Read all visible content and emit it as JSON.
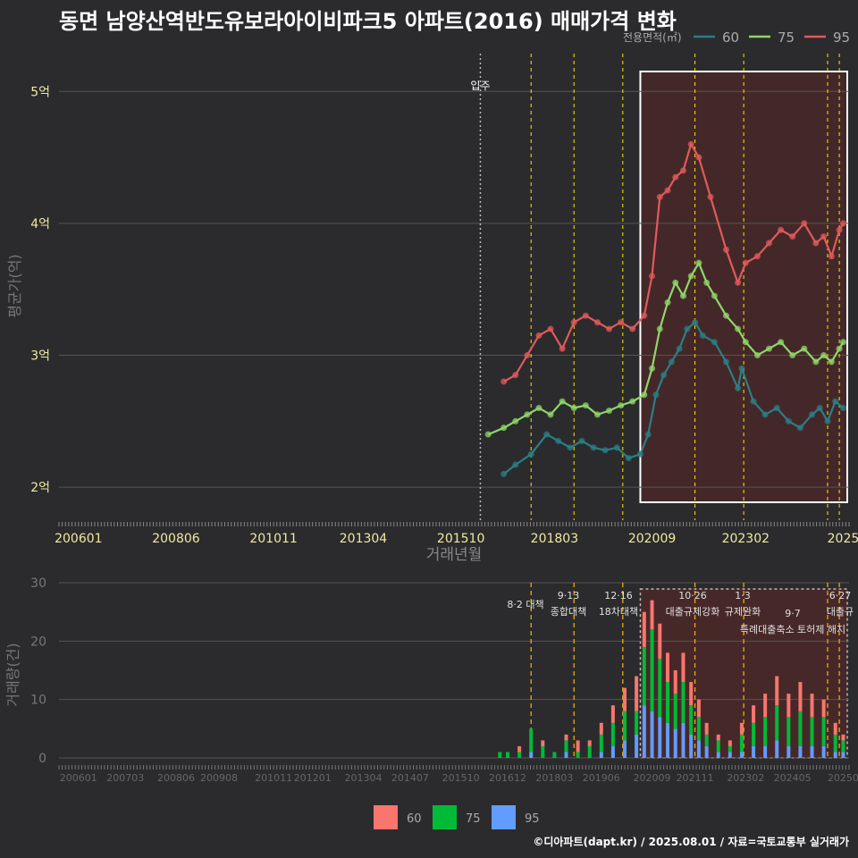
{
  "title": "동면 남양산역반도유보라아이비파크5 아파트(2016) 매매가격 변화",
  "footer": "©디아파트(dapt.kr) / 2025.08.01 / 자료=국토교통부 실거래가",
  "colors": {
    "bg": "#2b2b2d",
    "grid": "#555555",
    "s60": "#2a7f86",
    "s75": "#8fd66a",
    "s95": "#e05a5a",
    "b60": "#f8766d",
    "b75": "#00ba38",
    "b95": "#619cff",
    "policy": "#ffe600",
    "band": "#5a2626"
  },
  "chart_data": [
    {
      "type": "line",
      "ylabel": "평균가(억)",
      "xlabel": "거래년월",
      "ylim": [
        1.75,
        5.3
      ],
      "y_ticks": [
        "2억",
        "3억",
        "4억",
        "5억"
      ],
      "x_ticks": [
        "200601",
        "200806",
        "201011",
        "201304",
        "201510",
        "201803",
        "202009",
        "202302",
        "2025"
      ],
      "legend_title": "전용면적(㎡)",
      "annotation_move_in": "입주",
      "series": [
        {
          "name": "60",
          "points": [
            [
              2016.9,
              2.1
            ],
            [
              2017.2,
              2.17
            ],
            [
              2017.6,
              2.25
            ],
            [
              2018.0,
              2.4
            ],
            [
              2018.3,
              2.35
            ],
            [
              2018.6,
              2.3
            ],
            [
              2018.9,
              2.35
            ],
            [
              2019.2,
              2.3
            ],
            [
              2019.5,
              2.28
            ],
            [
              2019.8,
              2.3
            ],
            [
              2020.1,
              2.22
            ],
            [
              2020.4,
              2.25
            ],
            [
              2020.6,
              2.4
            ],
            [
              2020.8,
              2.7
            ],
            [
              2021.0,
              2.85
            ],
            [
              2021.2,
              2.95
            ],
            [
              2021.4,
              3.05
            ],
            [
              2021.6,
              3.2
            ],
            [
              2021.8,
              3.25
            ],
            [
              2022.0,
              3.15
            ],
            [
              2022.3,
              3.1
            ],
            [
              2022.6,
              2.95
            ],
            [
              2022.9,
              2.75
            ],
            [
              2023.0,
              2.9
            ],
            [
              2023.3,
              2.65
            ],
            [
              2023.6,
              2.55
            ],
            [
              2023.9,
              2.6
            ],
            [
              2024.2,
              2.5
            ],
            [
              2024.5,
              2.45
            ],
            [
              2024.8,
              2.55
            ],
            [
              2025.0,
              2.6
            ],
            [
              2025.2,
              2.5
            ],
            [
              2025.4,
              2.65
            ],
            [
              2025.6,
              2.6
            ]
          ]
        },
        {
          "name": "75",
          "points": [
            [
              2016.5,
              2.4
            ],
            [
              2016.9,
              2.45
            ],
            [
              2017.2,
              2.5
            ],
            [
              2017.5,
              2.55
            ],
            [
              2017.8,
              2.6
            ],
            [
              2018.1,
              2.55
            ],
            [
              2018.4,
              2.65
            ],
            [
              2018.7,
              2.6
            ],
            [
              2019.0,
              2.62
            ],
            [
              2019.3,
              2.55
            ],
            [
              2019.6,
              2.58
            ],
            [
              2019.9,
              2.62
            ],
            [
              2020.2,
              2.65
            ],
            [
              2020.5,
              2.7
            ],
            [
              2020.7,
              2.9
            ],
            [
              2020.9,
              3.2
            ],
            [
              2021.1,
              3.4
            ],
            [
              2021.3,
              3.55
            ],
            [
              2021.5,
              3.45
            ],
            [
              2021.7,
              3.6
            ],
            [
              2021.9,
              3.7
            ],
            [
              2022.1,
              3.55
            ],
            [
              2022.3,
              3.45
            ],
            [
              2022.6,
              3.3
            ],
            [
              2022.9,
              3.2
            ],
            [
              2023.1,
              3.1
            ],
            [
              2023.4,
              3.0
            ],
            [
              2023.7,
              3.05
            ],
            [
              2024.0,
              3.1
            ],
            [
              2024.3,
              3.0
            ],
            [
              2024.6,
              3.05
            ],
            [
              2024.9,
              2.95
            ],
            [
              2025.1,
              3.0
            ],
            [
              2025.3,
              2.95
            ],
            [
              2025.5,
              3.05
            ],
            [
              2025.6,
              3.1
            ]
          ]
        },
        {
          "name": "95",
          "points": [
            [
              2016.9,
              2.8
            ],
            [
              2017.2,
              2.85
            ],
            [
              2017.5,
              3.0
            ],
            [
              2017.8,
              3.15
            ],
            [
              2018.1,
              3.2
            ],
            [
              2018.4,
              3.05
            ],
            [
              2018.7,
              3.25
            ],
            [
              2019.0,
              3.3
            ],
            [
              2019.3,
              3.25
            ],
            [
              2019.6,
              3.2
            ],
            [
              2019.9,
              3.25
            ],
            [
              2020.2,
              3.2
            ],
            [
              2020.5,
              3.3
            ],
            [
              2020.7,
              3.6
            ],
            [
              2020.9,
              4.2
            ],
            [
              2021.1,
              4.25
            ],
            [
              2021.3,
              4.35
            ],
            [
              2021.5,
              4.4
            ],
            [
              2021.7,
              4.6
            ],
            [
              2021.9,
              4.5
            ],
            [
              2022.2,
              4.2
            ],
            [
              2022.6,
              3.8
            ],
            [
              2022.9,
              3.55
            ],
            [
              2023.1,
              3.7
            ],
            [
              2023.4,
              3.75
            ],
            [
              2023.7,
              3.85
            ],
            [
              2024.0,
              3.95
            ],
            [
              2024.3,
              3.9
            ],
            [
              2024.6,
              4.0
            ],
            [
              2024.9,
              3.85
            ],
            [
              2025.1,
              3.9
            ],
            [
              2025.3,
              3.75
            ],
            [
              2025.5,
              3.95
            ],
            [
              2025.6,
              4.0
            ]
          ]
        }
      ]
    },
    {
      "type": "bar",
      "ylabel": "거래량(건)",
      "ylim": [
        0,
        30
      ],
      "y_ticks": [
        "0",
        "10",
        "20",
        "30"
      ],
      "x_ticks": [
        "200601",
        "200703",
        "200806",
        "200908",
        "201011",
        "201201",
        "201304",
        "201407",
        "201510",
        "201612",
        "201803",
        "201906",
        "202009",
        "202111",
        "202302",
        "202405",
        "20250"
      ],
      "legend": [
        "60",
        "75",
        "95"
      ],
      "policy_labels": [
        {
          "date": "8·2 대책",
          "text": ""
        },
        {
          "date": "9·13",
          "text": "종합대책"
        },
        {
          "date": "12·16",
          "text": "18차대책"
        },
        {
          "date": "10·26",
          "text": "대출규제강화"
        },
        {
          "date": "1·3",
          "text": "규제완화"
        },
        {
          "date": "9·7",
          "text": "특례대출축소 토허제 해지"
        },
        {
          "date": "6·27",
          "text": "대출규"
        }
      ],
      "volumes": [
        [
          2016.8,
          0,
          1,
          0
        ],
        [
          2017.0,
          0,
          1,
          0
        ],
        [
          2017.3,
          1,
          1,
          0
        ],
        [
          2017.6,
          0,
          4,
          1
        ],
        [
          2017.9,
          1,
          2,
          0
        ],
        [
          2018.2,
          0,
          1,
          0
        ],
        [
          2018.5,
          1,
          2,
          1
        ],
        [
          2018.8,
          2,
          1,
          0
        ],
        [
          2019.1,
          1,
          2,
          0
        ],
        [
          2019.4,
          2,
          3,
          1
        ],
        [
          2019.7,
          3,
          4,
          2
        ],
        [
          2020.0,
          4,
          5,
          3
        ],
        [
          2020.3,
          6,
          4,
          4
        ],
        [
          2020.5,
          6,
          10,
          9
        ],
        [
          2020.7,
          5,
          14,
          8
        ],
        [
          2020.9,
          6,
          10,
          7
        ],
        [
          2021.1,
          5,
          7,
          6
        ],
        [
          2021.3,
          4,
          6,
          5
        ],
        [
          2021.5,
          5,
          7,
          6
        ],
        [
          2021.7,
          4,
          5,
          4
        ],
        [
          2021.9,
          3,
          4,
          3
        ],
        [
          2022.1,
          2,
          2,
          2
        ],
        [
          2022.4,
          1,
          2,
          1
        ],
        [
          2022.7,
          1,
          1,
          1
        ],
        [
          2023.0,
          2,
          3,
          1
        ],
        [
          2023.3,
          3,
          4,
          2
        ],
        [
          2023.6,
          4,
          5,
          2
        ],
        [
          2023.9,
          5,
          6,
          3
        ],
        [
          2024.2,
          4,
          5,
          2
        ],
        [
          2024.5,
          5,
          6,
          2
        ],
        [
          2024.8,
          4,
          5,
          2
        ],
        [
          2025.1,
          3,
          5,
          2
        ],
        [
          2025.4,
          2,
          3,
          1
        ],
        [
          2025.6,
          1,
          2,
          1
        ]
      ]
    }
  ]
}
